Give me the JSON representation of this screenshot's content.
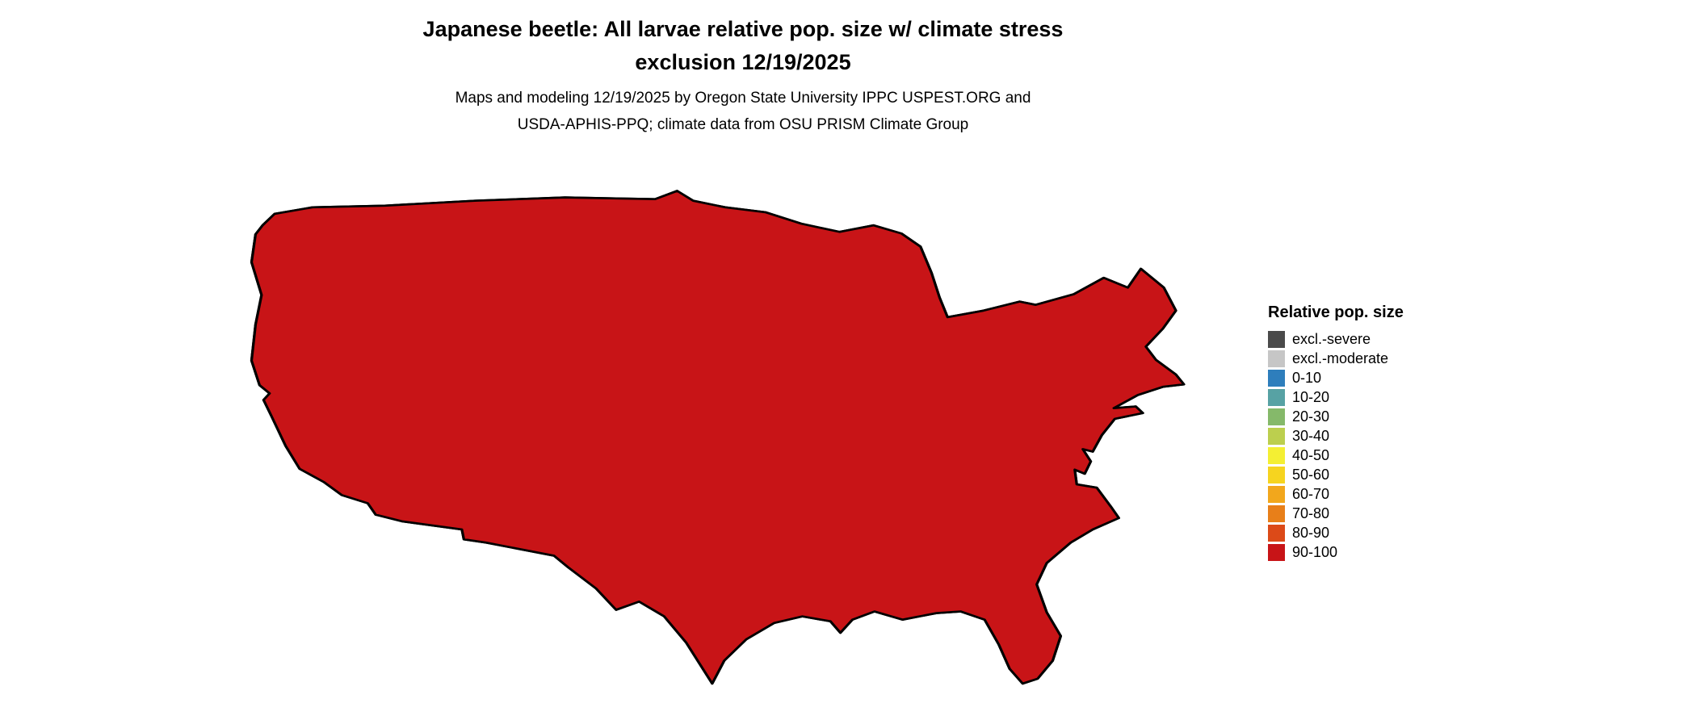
{
  "title": {
    "line1": "Japanese beetle: All larvae relative pop. size w/ climate stress",
    "line2": "exclusion 12/19/2025"
  },
  "subtitle": {
    "line1": "Maps and modeling 12/19/2025 by Oregon State University IPPC USPEST.ORG and",
    "line2": "USDA-APHIS-PPQ; climate data from OSU PRISM Climate Group"
  },
  "legend": {
    "title": "Relative pop. size",
    "entries": [
      {
        "label": "excl.-severe",
        "color": "#4a4a4a",
        "var": "sev"
      },
      {
        "label": "excl.-moderate",
        "color": "#c6c6c6",
        "var": "mod"
      },
      {
        "label": "0-10",
        "color": "#2e7ebc",
        "var": "b0"
      },
      {
        "label": "10-20",
        "color": "#57a2a4",
        "var": "b10"
      },
      {
        "label": "20-30",
        "color": "#85b96a",
        "var": "b20"
      },
      {
        "label": "30-40",
        "color": "#bccf4e",
        "var": "b30"
      },
      {
        "label": "40-50",
        "color": "#f4ef33",
        "var": "b40"
      },
      {
        "label": "50-60",
        "color": "#f6d41f",
        "var": "b50"
      },
      {
        "label": "60-70",
        "color": "#f2a71c",
        "var": "b60"
      },
      {
        "label": "70-80",
        "color": "#e87f19",
        "var": "b70"
      },
      {
        "label": "80-90",
        "color": "#dc4a18",
        "var": "b80"
      },
      {
        "label": "90-100",
        "color": "#c81417",
        "var": "b90"
      }
    ]
  },
  "map": {
    "region": "Contiguous United States",
    "base_fill": "#c81417",
    "border_color": "#000000",
    "water_color": "#ffffff"
  }
}
